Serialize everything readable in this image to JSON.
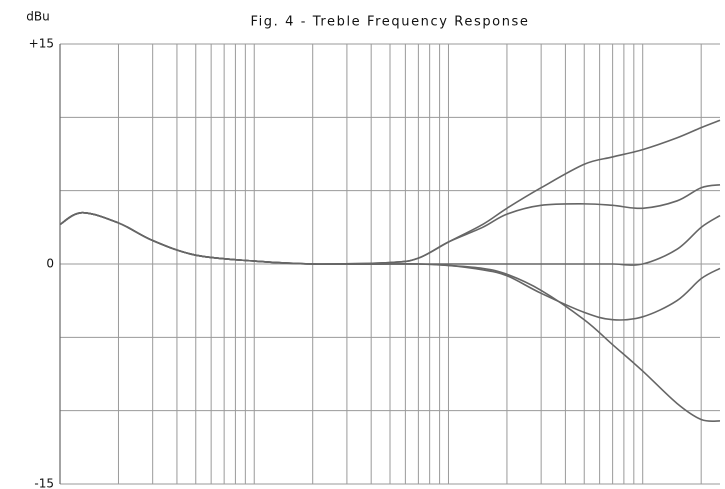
{
  "chart_data": {
    "type": "line",
    "title": "Fig. 4 - Treble Frequency Response",
    "y_label": "dBu",
    "x_scale": "log",
    "x": [
      10,
      13,
      20,
      30,
      50,
      100,
      200,
      500,
      700,
      1000,
      1500,
      2000,
      3000,
      5000,
      7000,
      10000,
      15000,
      20000,
      25000
    ],
    "series": [
      {
        "color": "#666666",
        "values": [
          2.7,
          3.5,
          2.8,
          1.6,
          0.6,
          0.2,
          0,
          0.1,
          0.4,
          1.5,
          2.7,
          3.8,
          5.2,
          6.8,
          7.3,
          7.8,
          8.6,
          9.3,
          9.8
        ]
      },
      {
        "color": "#666666",
        "values": [
          2.7,
          3.5,
          2.8,
          1.6,
          0.6,
          0.2,
          0,
          0.1,
          0.4,
          1.5,
          2.5,
          3.4,
          4.0,
          4.1,
          4.0,
          3.8,
          4.3,
          5.2,
          5.4
        ]
      },
      {
        "color": "#666666",
        "values": [
          2.7,
          3.5,
          2.8,
          1.6,
          0.6,
          0.2,
          0,
          0,
          0,
          0,
          0,
          0,
          0,
          0,
          0,
          0,
          1.0,
          2.5,
          3.3
        ]
      },
      {
        "color": "#666666",
        "values": [
          2.7,
          3.5,
          2.8,
          1.6,
          0.6,
          0.2,
          0,
          0,
          0,
          -0.1,
          -0.4,
          -0.8,
          -2.0,
          -3.3,
          -3.8,
          -3.6,
          -2.5,
          -1.0,
          -0.3
        ]
      },
      {
        "color": "#666666",
        "values": [
          2.7,
          3.5,
          2.8,
          1.6,
          0.6,
          0.2,
          0,
          0,
          0,
          -0.1,
          -0.3,
          -0.7,
          -1.8,
          -3.8,
          -5.5,
          -7.3,
          -9.5,
          -10.6,
          -10.7
        ]
      }
    ],
    "xlim": [
      10,
      25000
    ],
    "xticks": [
      10,
      20,
      30,
      40,
      50,
      60,
      70,
      80,
      90,
      100,
      200,
      300,
      400,
      500,
      600,
      700,
      800,
      900,
      1000,
      2000,
      3000,
      4000,
      5000,
      6000,
      7000,
      8000,
      9000,
      10000,
      20000
    ],
    "ylim": [
      -15,
      15
    ],
    "yticks": [
      {
        "value": 15,
        "label": "+15"
      },
      0,
      {
        "value": -15,
        "label": "-15"
      }
    ],
    "yminor": [
      10,
      5,
      -5,
      -10
    ],
    "grid": true,
    "grid_color": "#9a9a9a"
  }
}
